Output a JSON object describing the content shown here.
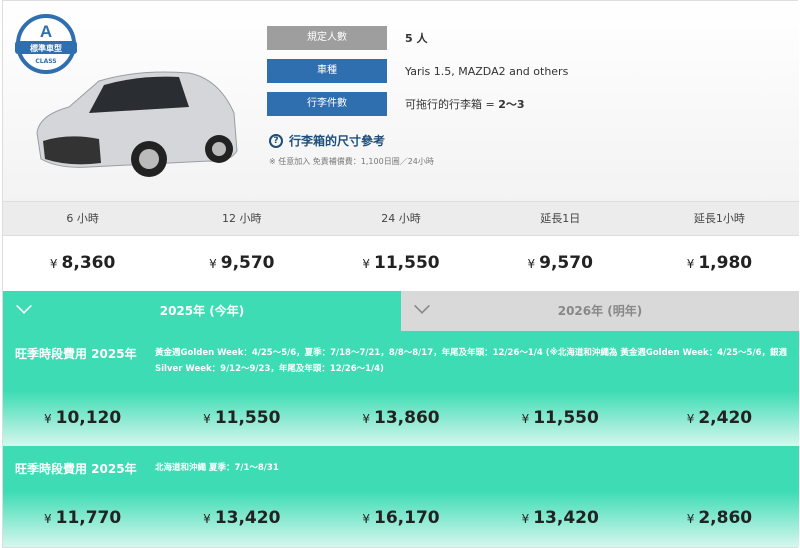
{
  "car": {
    "class_letter": "A",
    "class_name": "標準車型",
    "class_label": "CLASS"
  },
  "specs": [
    {
      "label": "規定人數",
      "value": "5 人",
      "color": "#9e9e9e"
    },
    {
      "label": "車種",
      "value": "Yaris 1.5, MAZDA2 and others",
      "color": "#2f6eaf"
    },
    {
      "label": "行李件數",
      "value": "可拖行的行李箱 = ",
      "value_bold": "2〜3",
      "color": "#2f6eaf"
    }
  ],
  "luggage_link": "行李箱的尺寸參考",
  "note": "※ 任意加入 免責補償費：1,100日圓／24小時",
  "columns": [
    "6 小時",
    "12 小時",
    "24 小時",
    "延長1日",
    "延長1小時"
  ],
  "currency": "¥",
  "base_prices": [
    "8,360",
    "9,570",
    "11,550",
    "9,570",
    "1,980"
  ],
  "tabs": [
    {
      "label": "2025年 (今年)",
      "active": true
    },
    {
      "label": "2026年 (明年)",
      "active": false
    }
  ],
  "seasons": [
    {
      "title": "旺季時段費用 2025年",
      "desc": "黃金週Golden Week：4/25〜5/6，夏季：7/18〜7/21，8/8〜8/17，年尾及年頭：12/26〜1/4 (※北海道和沖繩為 黃金週Golden Week：4/25〜5/6，銀週Silver Week：9/12〜9/23，年尾及年頭：12/26〜1/4)",
      "prices": [
        "10,120",
        "11,550",
        "13,860",
        "11,550",
        "2,420"
      ]
    },
    {
      "title": "旺季時段費用 2025年",
      "desc": "北海道和沖繩 夏季：7/1〜8/31",
      "prices": [
        "11,770",
        "13,420",
        "16,170",
        "13,420",
        "2,860"
      ]
    }
  ],
  "accent": "#3ddcb4"
}
